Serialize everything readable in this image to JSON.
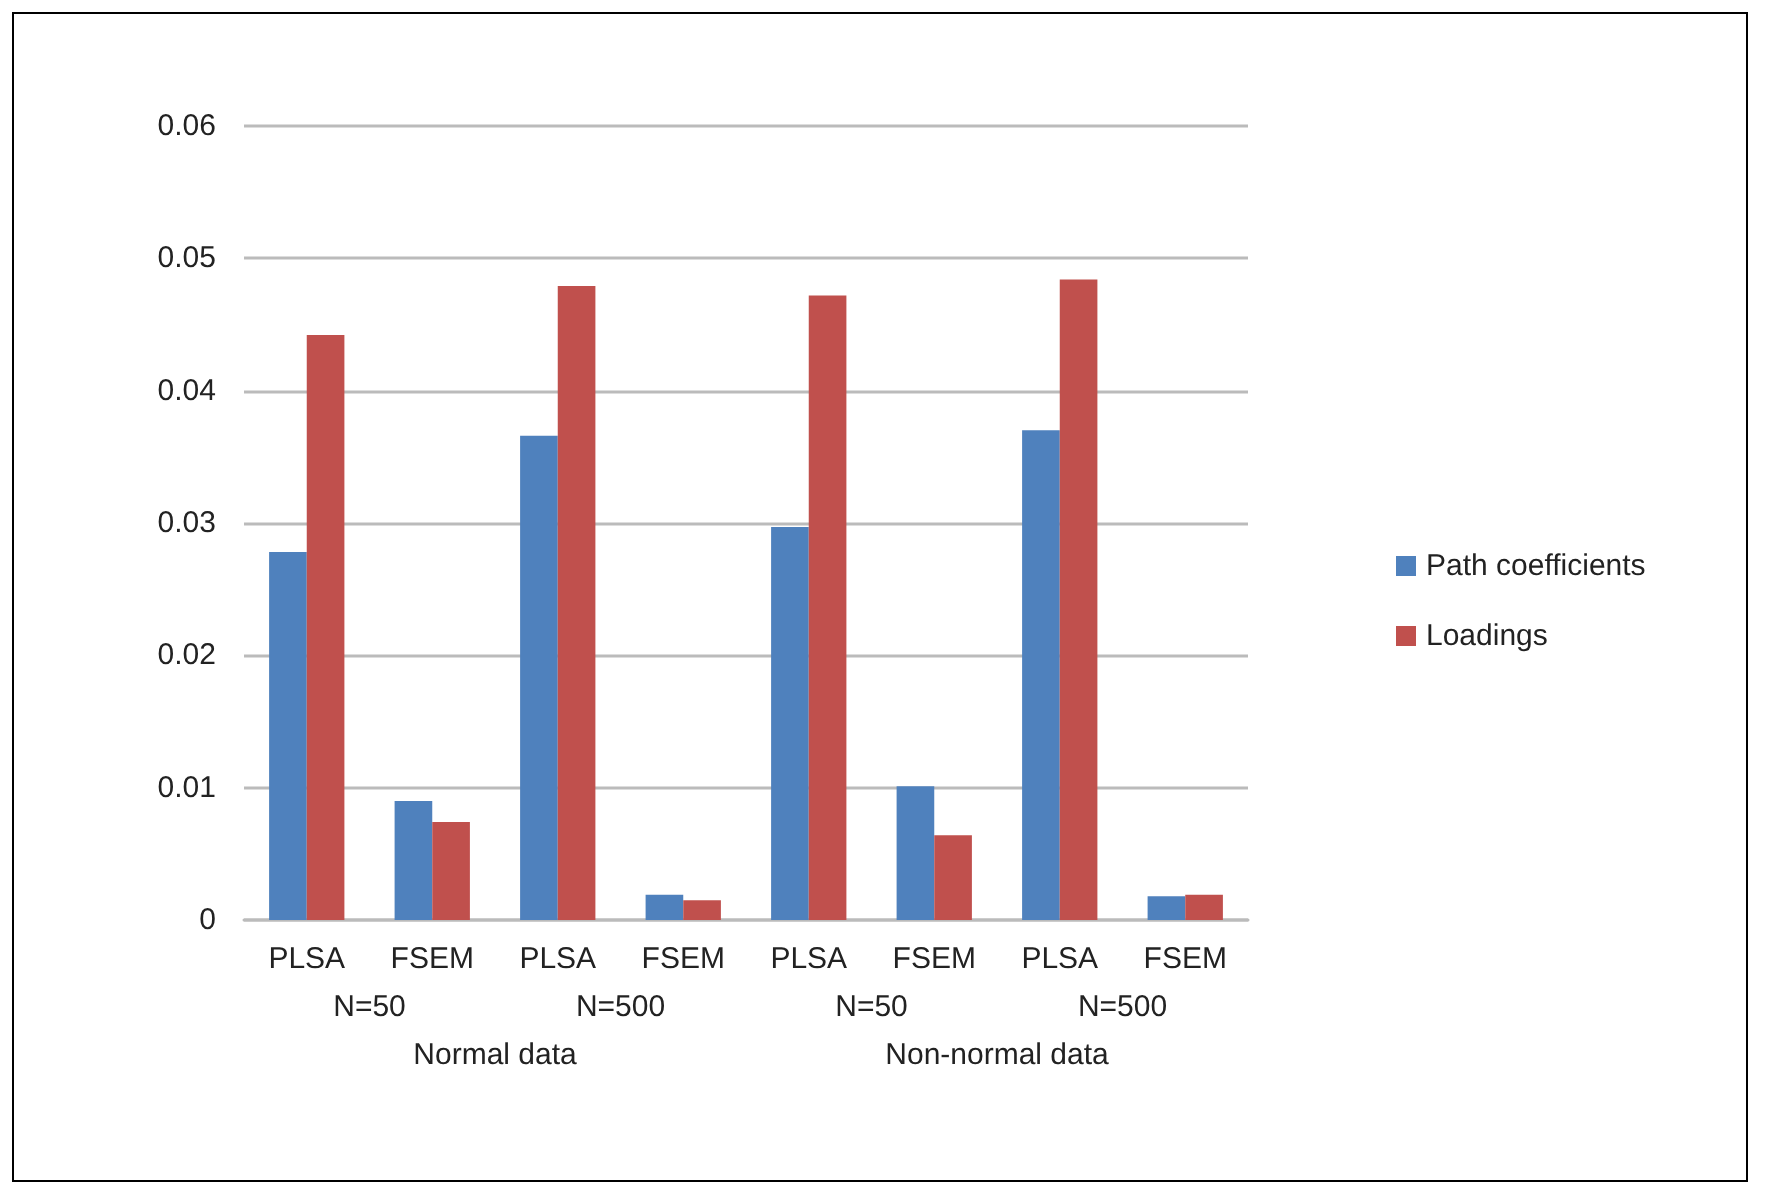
{
  "chart_data": {
    "type": "bar",
    "categories": [
      "PLSA",
      "FSEM",
      "PLSA",
      "FSEM",
      "PLSA",
      "FSEM",
      "PLSA",
      "FSEM"
    ],
    "series": [
      {
        "name": "Path coefficients",
        "color": "#4f81bd",
        "values": [
          0.0278,
          0.009,
          0.0366,
          0.0019,
          0.0297,
          0.0101,
          0.037,
          0.0018
        ]
      },
      {
        "name": "Loadings",
        "color": "#c0504d",
        "values": [
          0.0442,
          0.0074,
          0.0479,
          0.0015,
          0.0472,
          0.0064,
          0.0484,
          0.0019
        ]
      }
    ],
    "annotations": [
      "N=50",
      "N=500",
      "N=50",
      "N=500",
      "Normal data",
      "Non-normal data"
    ],
    "ylim": [
      0,
      0.06
    ],
    "yticks": [
      0,
      0.01,
      0.02,
      0.03,
      0.04,
      0.05,
      0.06
    ],
    "grid": "y",
    "legend": "right"
  }
}
